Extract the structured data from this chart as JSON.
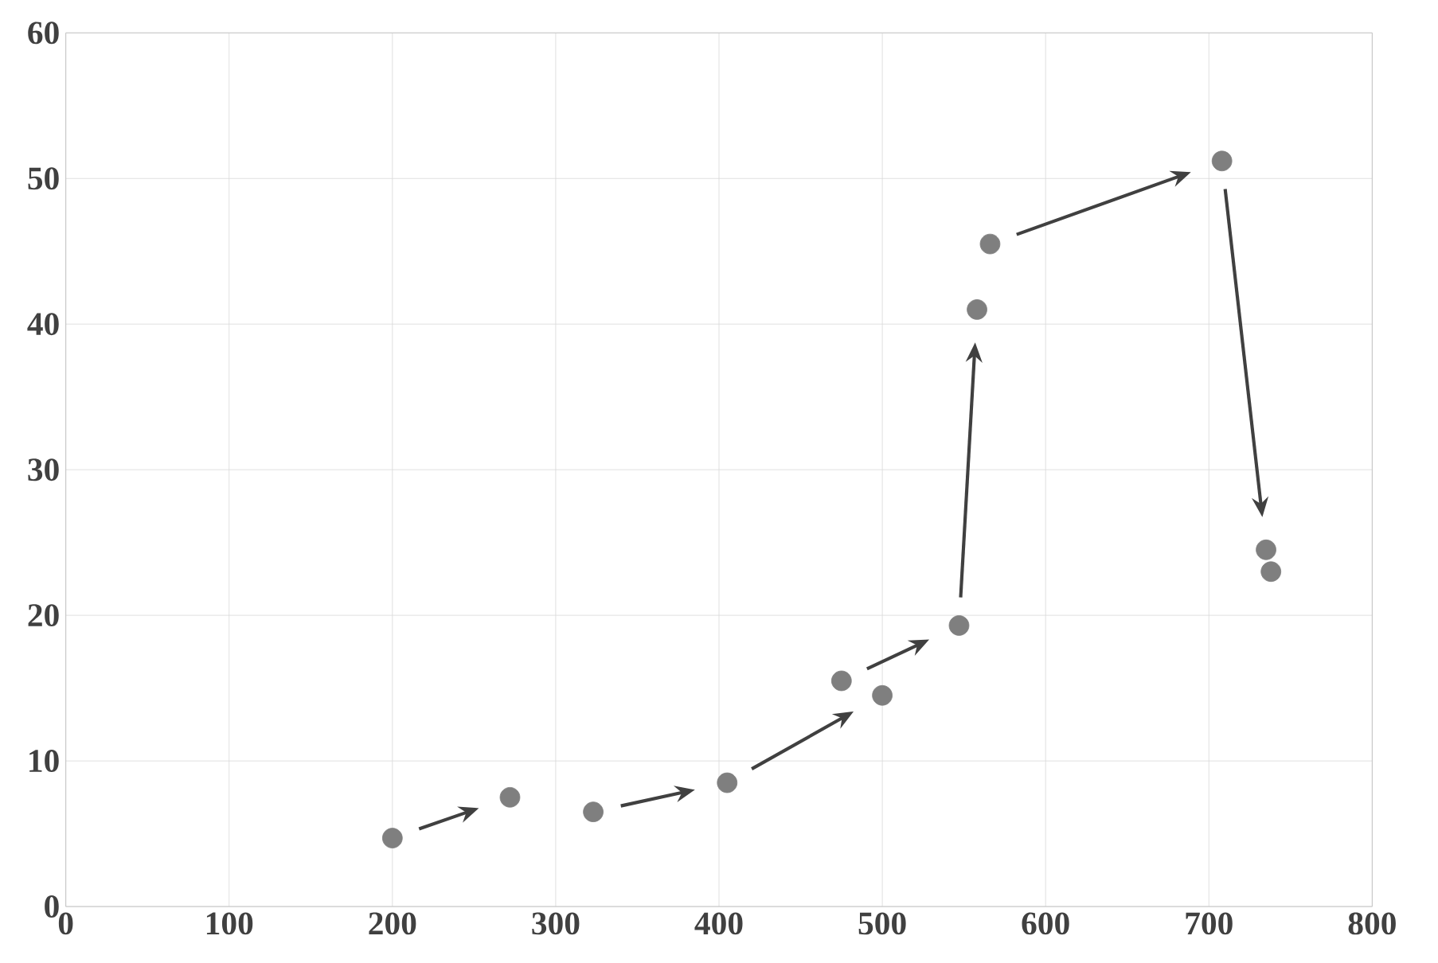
{
  "chart_data": {
    "type": "scatter",
    "x": [
      200,
      272,
      323,
      405,
      500,
      475,
      547,
      558,
      566,
      708,
      735,
      738
    ],
    "values": [
      4.7,
      7.5,
      6.5,
      8.5,
      14.5,
      15.5,
      19.3,
      41,
      45.5,
      51.2,
      24.5,
      23
    ],
    "color": "#7f7f7f",
    "xlim": [
      0,
      800
    ],
    "xticks": [
      0,
      100,
      200,
      300,
      400,
      500,
      600,
      700,
      800
    ],
    "ylim": [
      0,
      60
    ],
    "yticks": [
      0,
      10,
      20,
      30,
      40,
      50,
      60
    ],
    "grid": true
  }
}
